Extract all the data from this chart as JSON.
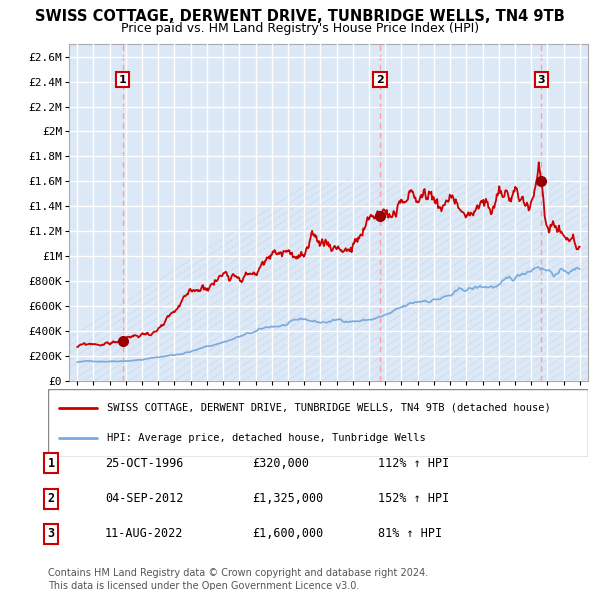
{
  "title": "SWISS COTTAGE, DERWENT DRIVE, TUNBRIDGE WELLS, TN4 9TB",
  "subtitle": "Price paid vs. HM Land Registry's House Price Index (HPI)",
  "ylim": [
    0,
    2700000
  ],
  "yticks": [
    0,
    200000,
    400000,
    600000,
    800000,
    1000000,
    1200000,
    1400000,
    1600000,
    1800000,
    2000000,
    2200000,
    2400000,
    2600000
  ],
  "ytick_labels": [
    "£0",
    "£200K",
    "£400K",
    "£600K",
    "£800K",
    "£1M",
    "£1.2M",
    "£1.4M",
    "£1.6M",
    "£1.8M",
    "£2M",
    "£2.2M",
    "£2.4M",
    "£2.6M"
  ],
  "xlim_start": 1993.5,
  "xlim_end": 2025.5,
  "xticks": [
    1994,
    1995,
    1996,
    1997,
    1998,
    1999,
    2000,
    2001,
    2002,
    2003,
    2004,
    2005,
    2006,
    2007,
    2008,
    2009,
    2010,
    2011,
    2012,
    2013,
    2014,
    2015,
    2016,
    2017,
    2018,
    2019,
    2020,
    2021,
    2022,
    2023,
    2024,
    2025
  ],
  "red_line_color": "#cc0000",
  "blue_line_color": "#7aaadd",
  "sale_marker_color": "#990000",
  "dashed_line_color": "#ff9999",
  "background_color": "#dce8f5",
  "grid_color": "#ffffff",
  "hatch_color": "#c5d8ec",
  "title_fontsize": 10.5,
  "subtitle_fontsize": 9,
  "sale_points": [
    {
      "year": 1996.81,
      "price": 320000,
      "label": "1"
    },
    {
      "year": 2012.68,
      "price": 1325000,
      "label": "2"
    },
    {
      "year": 2022.61,
      "price": 1600000,
      "label": "3"
    }
  ],
  "table_rows": [
    {
      "num": "1",
      "date": "25-OCT-1996",
      "price": "£320,000",
      "pct": "112% ↑ HPI"
    },
    {
      "num": "2",
      "date": "04-SEP-2012",
      "price": "£1,325,000",
      "pct": "152% ↑ HPI"
    },
    {
      "num": "3",
      "date": "11-AUG-2022",
      "price": "£1,600,000",
      "pct": "81% ↑ HPI"
    }
  ],
  "legend_entries": [
    "SWISS COTTAGE, DERWENT DRIVE, TUNBRIDGE WELLS, TN4 9TB (detached house)",
    "HPI: Average price, detached house, Tunbridge Wells"
  ],
  "footer": "Contains HM Land Registry data © Crown copyright and database right 2024.\nThis data is licensed under the Open Government Licence v3.0."
}
